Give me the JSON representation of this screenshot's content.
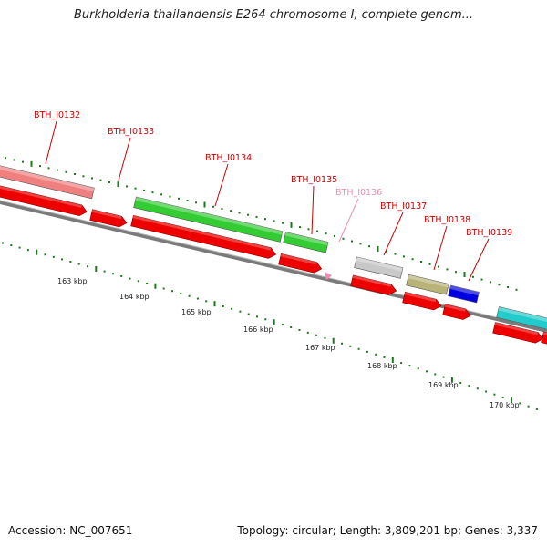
{
  "title": "Burkholderia thailandensis E264 chromosome I, complete genom...",
  "footer": {
    "accession": "Accession: NC_007651",
    "summary": "Topology: circular; Length: 3,809,201 bp; Genes: 3,337"
  },
  "colors": {
    "backbone": "#7a7a7a",
    "tick": "#1a7a1a",
    "label": "#cc0000",
    "label_faded": "#f08cb4",
    "cds": "#ee0000"
  },
  "kbp_labels": [
    "163 kbp",
    "164 kbp",
    "165 kbp",
    "166 kbp",
    "167 kbp",
    "168 kbp",
    "169 kbp",
    "170 kbp"
  ],
  "gene_labels": [
    {
      "text": "BTH_I0132",
      "faded": false
    },
    {
      "text": "BTH_I0133",
      "faded": false
    },
    {
      "text": "BTH_I0134",
      "faded": false
    },
    {
      "text": "BTH_I0135",
      "faded": false
    },
    {
      "text": "BTH_I0136",
      "faded": true
    },
    {
      "text": "BTH_I0137",
      "faded": false
    },
    {
      "text": "BTH_I0138",
      "faded": false
    },
    {
      "text": "BTH_I0139",
      "faded": false
    }
  ],
  "feature_colors": [
    "#f08080",
    "#33cc33",
    "#33cc33",
    "#c8c8c8",
    "#b8b478",
    "#0000e0",
    "#22cccc"
  ]
}
